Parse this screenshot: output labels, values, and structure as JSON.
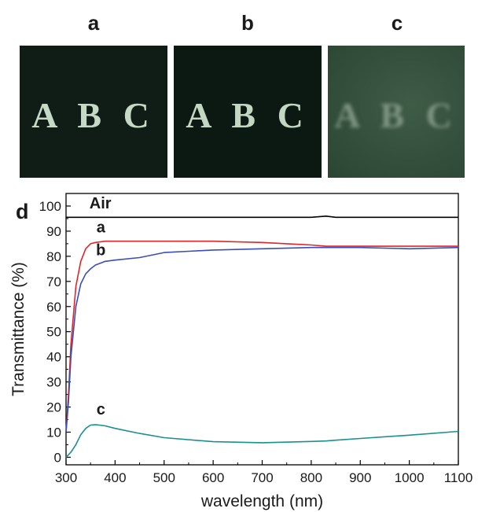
{
  "panels": {
    "a": {
      "letter": "a",
      "photo_text": "A B C"
    },
    "b": {
      "letter": "b",
      "photo_text": "A B C"
    },
    "c": {
      "letter": "c",
      "photo_text": "A B C"
    }
  },
  "chart_data": {
    "type": "line",
    "panel_label": "d",
    "xlabel": "wavelength (nm)",
    "ylabel": "Transmittance (%)",
    "xlim": [
      300,
      1100
    ],
    "ylim": [
      -3,
      105
    ],
    "xticks": [
      300,
      400,
      500,
      600,
      700,
      800,
      900,
      1000,
      1100
    ],
    "yticks": [
      0,
      10,
      20,
      30,
      40,
      50,
      60,
      70,
      80,
      90,
      100
    ],
    "grid": false,
    "series": [
      {
        "name": "Air",
        "color": "#000000",
        "x": [
          300,
          350,
          400,
          500,
          600,
          700,
          800,
          830,
          850,
          900,
          1000,
          1100
        ],
        "y": [
          95.5,
          95.5,
          95.5,
          95.5,
          95.5,
          95.5,
          95.5,
          96,
          95.5,
          95.5,
          95.5,
          95.5
        ]
      },
      {
        "name": "a",
        "color": "#e0262b",
        "x": [
          300,
          305,
          310,
          320,
          330,
          340,
          350,
          360,
          380,
          400,
          450,
          500,
          600,
          700,
          800,
          830,
          850,
          900,
          1000,
          1100
        ],
        "y": [
          10,
          25,
          45,
          68,
          78,
          83,
          85,
          85.5,
          86,
          86,
          86,
          86,
          86,
          85.5,
          84.5,
          84,
          84,
          84,
          84,
          84
        ]
      },
      {
        "name": "b",
        "color": "#3b4db8",
        "x": [
          300,
          305,
          310,
          320,
          330,
          340,
          350,
          360,
          380,
          400,
          450,
          500,
          550,
          600,
          700,
          800,
          830,
          850,
          900,
          1000,
          1100
        ],
        "y": [
          10,
          22,
          40,
          60,
          69,
          73,
          75,
          76.5,
          78,
          78.5,
          79.5,
          81.5,
          82,
          82.5,
          83,
          83.5,
          83.5,
          83.5,
          83.5,
          83,
          83.5
        ]
      },
      {
        "name": "c",
        "color": "#1a9090",
        "x": [
          300,
          310,
          320,
          330,
          340,
          350,
          360,
          380,
          400,
          450,
          500,
          600,
          700,
          800,
          830,
          850,
          900,
          1000,
          1100
        ],
        "y": [
          0,
          2,
          5,
          9,
          11.5,
          12.8,
          13,
          12.5,
          11.5,
          9.5,
          7.8,
          6.2,
          5.8,
          6.3,
          6.5,
          6.8,
          7.5,
          8.8,
          10.3
        ]
      }
    ]
  }
}
